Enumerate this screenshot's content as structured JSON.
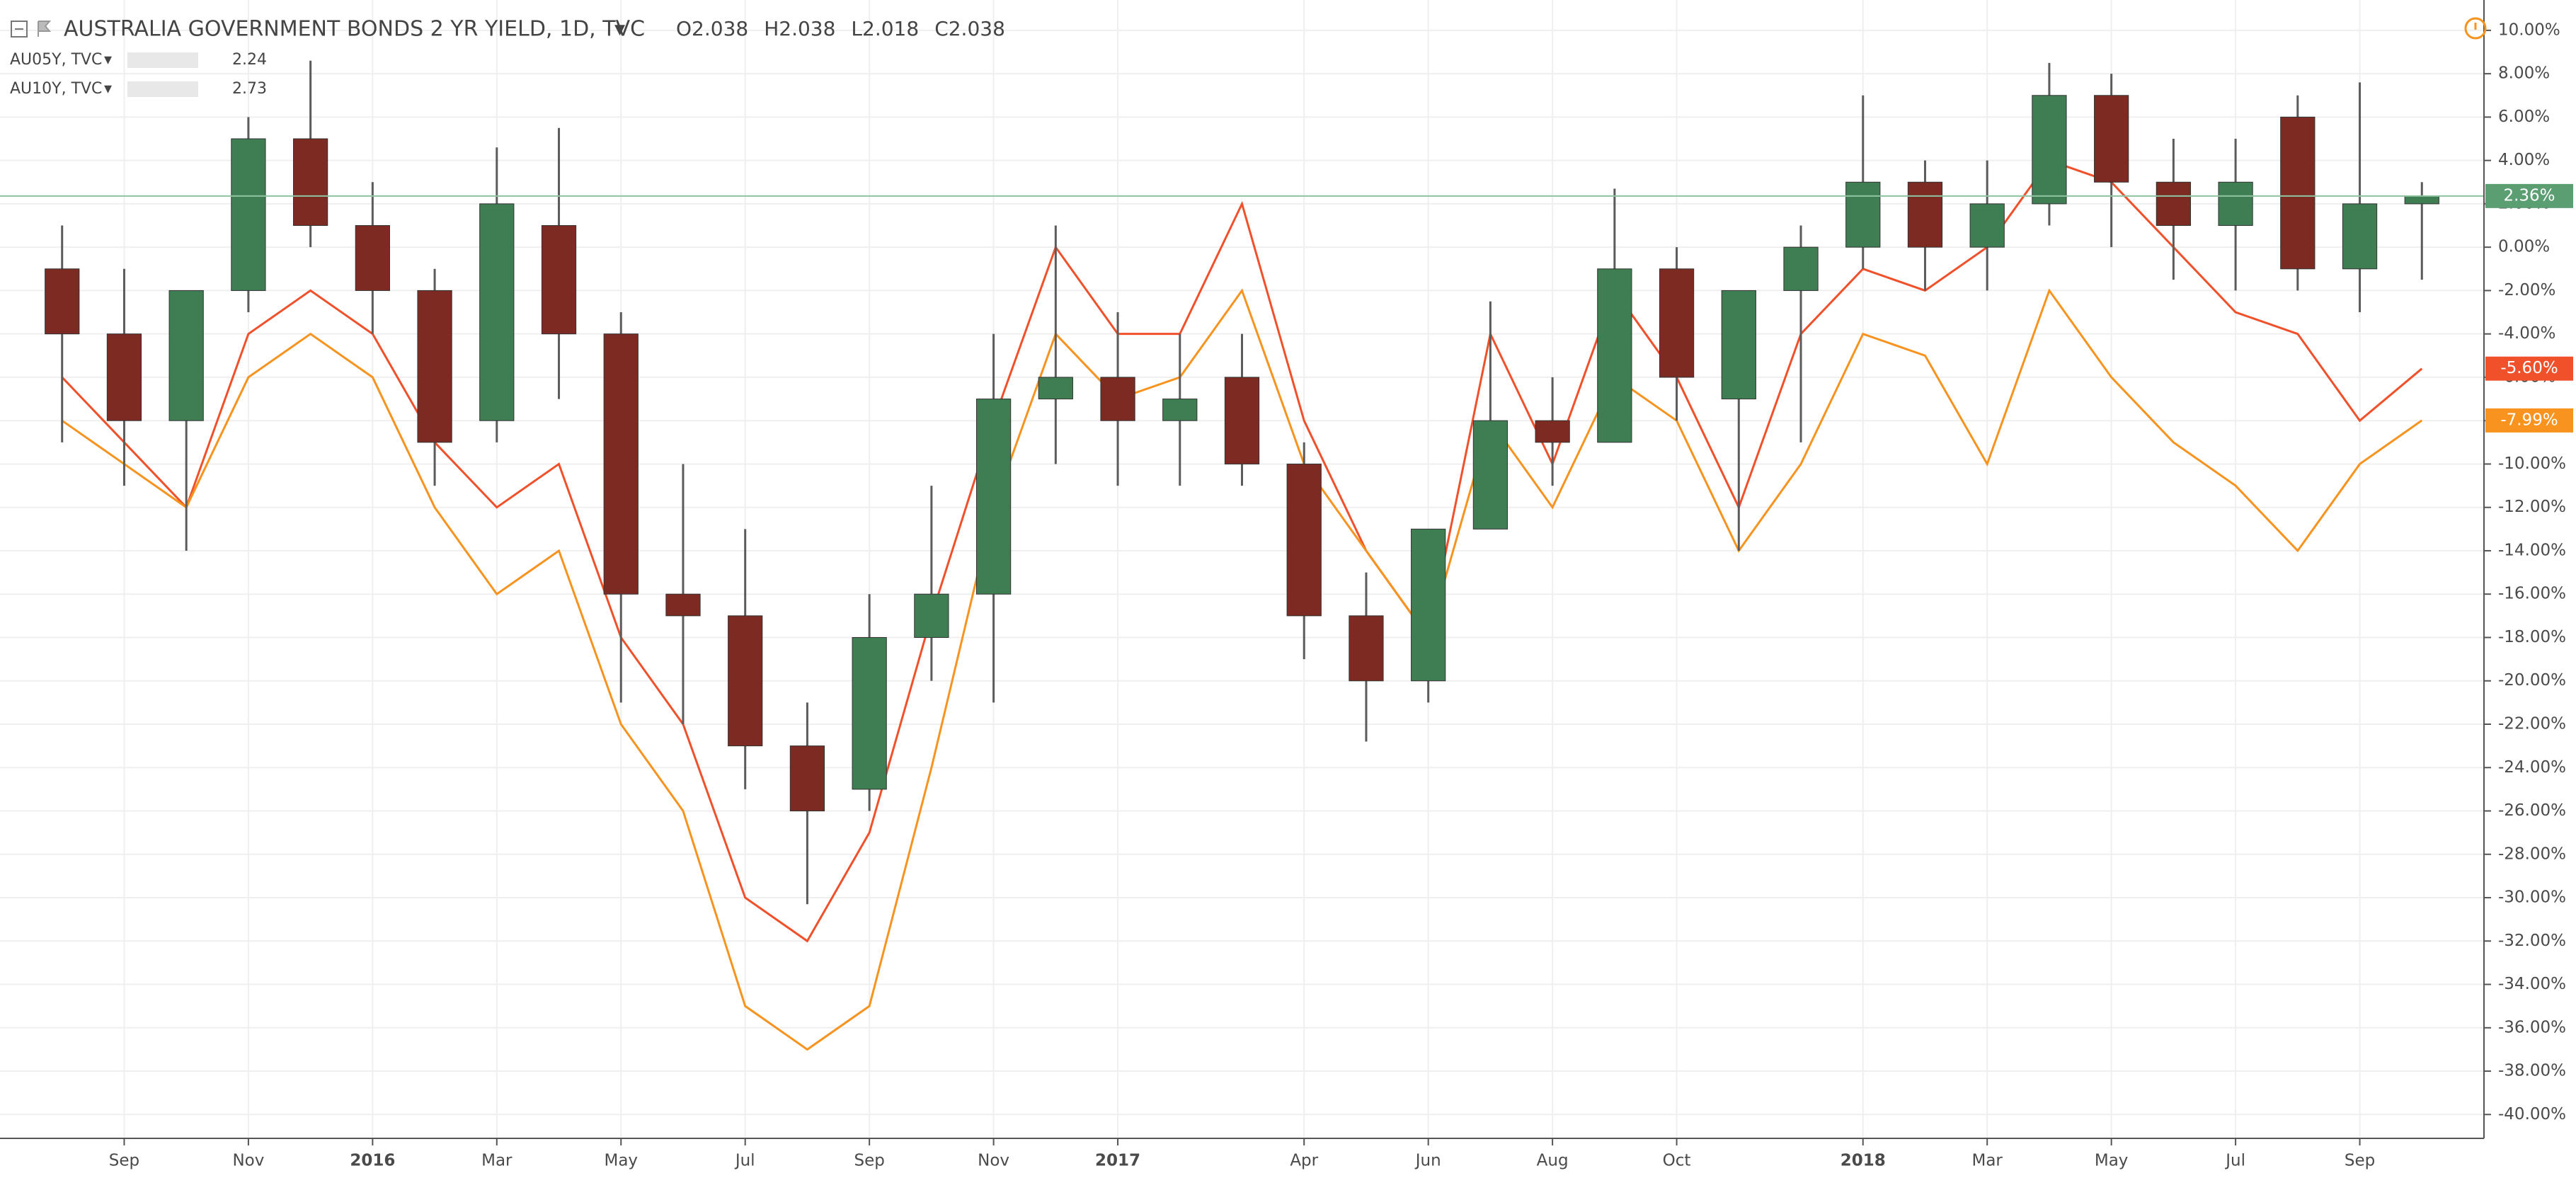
{
  "chart_data": {
    "type": "candlestick",
    "title": "AUSTRALIA GOVERNMENT BONDS 2 YR YIELD, 1D, TVC",
    "ohlc_legend": [
      "O2.038",
      "H2.038",
      "L2.018",
      "C2.038"
    ],
    "x": [
      "2015-08",
      "2015-09",
      "2015-10",
      "2015-11",
      "2015-12",
      "2016-01",
      "2016-02",
      "2016-03",
      "2016-04",
      "2016-05",
      "2016-06",
      "2016-07",
      "2016-08",
      "2016-09",
      "2016-10",
      "2016-11",
      "2016-12",
      "2017-01",
      "2017-02",
      "2017-03",
      "2017-04",
      "2017-05",
      "2017-06",
      "2017-07",
      "2017-08",
      "2017-09",
      "2017-10",
      "2017-11",
      "2017-12",
      "2018-01",
      "2018-02",
      "2018-03",
      "2018-04",
      "2018-05",
      "2018-06",
      "2018-07",
      "2018-08",
      "2018-09",
      "2018-10"
    ],
    "candles": {
      "up_color": "#3f7d52",
      "down_color": "#7d2b22",
      "wick_color": "#5b5b5b",
      "last_label": "2.36%",
      "open": [
        -1,
        -4,
        -8,
        -2,
        5,
        1,
        -2,
        -8,
        1,
        -4,
        -16,
        -17,
        -23,
        -25,
        -18,
        -16,
        -7,
        -6,
        -8,
        -6,
        -10,
        -17,
        -20,
        -13,
        -8,
        -9,
        -1,
        -7,
        -2,
        0,
        3,
        0,
        2,
        7,
        3,
        1,
        6,
        -1,
        2
      ],
      "high": [
        1,
        -1,
        -4,
        6,
        8.6,
        3,
        -1,
        4.6,
        5.5,
        -3,
        -10,
        -13,
        -21,
        -16,
        -11,
        -4,
        1,
        -3,
        -4,
        -4,
        -9,
        -15,
        -13,
        -2.5,
        -6,
        2.7,
        0,
        -4,
        1,
        7,
        4,
        4,
        8.5,
        8,
        5,
        5,
        7,
        7.6,
        3
      ],
      "low": [
        -9,
        -11,
        -14,
        -3,
        0,
        -4,
        -11,
        -9,
        -7,
        -21,
        -22,
        -25,
        -30.3,
        -26,
        -20,
        -21,
        -10,
        -11,
        -11,
        -11,
        -19,
        -22.8,
        -21,
        -13,
        -11,
        -9,
        -8,
        -14,
        -9,
        -1,
        -2,
        -2,
        1,
        0,
        -1.5,
        -2,
        -2,
        -3,
        -1.5
      ],
      "close": [
        -4,
        -8,
        -2,
        5,
        1,
        -2,
        -9,
        2,
        -4,
        -16,
        -17,
        -23,
        -26,
        -18,
        -16,
        -7,
        -6,
        -8,
        -7,
        -10,
        -17,
        -20,
        -13,
        -8,
        -9,
        -1,
        -6,
        -2,
        0,
        3,
        0,
        2,
        7,
        3,
        1,
        3,
        -1,
        2,
        2.36
      ]
    },
    "series": [
      {
        "name": "AU05Y, TVC",
        "value": 2.24,
        "color": "#f0502a",
        "last_label": "-5.60%",
        "values": [
          -6,
          -9,
          -12,
          -4,
          -2,
          -4,
          -9,
          -12,
          -10,
          -18,
          -22,
          -30,
          -32,
          -27,
          -17,
          -8,
          0,
          -4,
          -4,
          2,
          -8,
          -14,
          -18,
          -4,
          -10,
          -2,
          -6,
          -12,
          -4,
          -1,
          -2,
          0,
          4,
          3,
          0,
          -3,
          -4,
          -8,
          -5.6
        ]
      },
      {
        "name": "AU10Y, TVC",
        "value": 2.73,
        "color": "#f7931e",
        "last_label": "-7.99%",
        "values": [
          -8,
          -10,
          -12,
          -6,
          -4,
          -6,
          -12,
          -16,
          -14,
          -22,
          -26,
          -35,
          -37,
          -35,
          -24,
          -12,
          -4,
          -7,
          -6,
          -2,
          -10,
          -14,
          -18,
          -8,
          -12,
          -6,
          -8,
          -14,
          -10,
          -4,
          -5,
          -10,
          -2,
          -6,
          -9,
          -11,
          -14,
          -10,
          -7.99
        ]
      }
    ],
    "xlim": [
      "2015-07",
      "2018-11"
    ],
    "xticks": [
      {
        "value": "2015-09",
        "label": "Sep"
      },
      {
        "value": "2015-11",
        "label": "Nov"
      },
      {
        "value": "2016-01",
        "label": "2016"
      },
      {
        "value": "2016-03",
        "label": "Mar"
      },
      {
        "value": "2016-05",
        "label": "May"
      },
      {
        "value": "2016-07",
        "label": "Jul"
      },
      {
        "value": "2016-09",
        "label": "Sep"
      },
      {
        "value": "2016-11",
        "label": "Nov"
      },
      {
        "value": "2017-01",
        "label": "2017"
      },
      {
        "value": "2017-04",
        "label": "Apr"
      },
      {
        "value": "2017-06",
        "label": "Jun"
      },
      {
        "value": "2017-08",
        "label": "Aug"
      },
      {
        "value": "2017-10",
        "label": "Oct"
      },
      {
        "value": "2018-01",
        "label": "2018"
      },
      {
        "value": "2018-03",
        "label": "Mar"
      },
      {
        "value": "2018-05",
        "label": "May"
      },
      {
        "value": "2018-07",
        "label": "Jul"
      },
      {
        "value": "2018-09",
        "label": "Sep"
      }
    ],
    "ylim": [
      -41.1,
      11.4
    ],
    "yticks": [
      {
        "value": 10,
        "label": "10.00%"
      },
      {
        "value": 8,
        "label": "8.00%"
      },
      {
        "value": 6,
        "label": "6.00%"
      },
      {
        "value": 4,
        "label": "4.00%"
      },
      {
        "value": 2,
        "label": "2.00%"
      },
      {
        "value": 0,
        "label": "0.00%"
      },
      {
        "value": -2,
        "label": "-2.00%"
      },
      {
        "value": -4,
        "label": "-4.00%"
      },
      {
        "value": -6,
        "label": "-6.00%"
      },
      {
        "value": -8,
        "label": "-8.00%"
      },
      {
        "value": -10,
        "label": "-10.00%"
      },
      {
        "value": -12,
        "label": "-12.00%"
      },
      {
        "value": -14,
        "label": "-14.00%"
      },
      {
        "value": -16,
        "label": "-16.00%"
      },
      {
        "value": -18,
        "label": "-18.00%"
      },
      {
        "value": -20,
        "label": "-20.00%"
      },
      {
        "value": -22,
        "label": "-22.00%"
      },
      {
        "value": -24,
        "label": "-24.00%"
      },
      {
        "value": -26,
        "label": "-26.00%"
      },
      {
        "value": -28,
        "label": "-28.00%"
      },
      {
        "value": -30,
        "label": "-30.00%"
      },
      {
        "value": -32,
        "label": "-32.00%"
      },
      {
        "value": -34,
        "label": "-34.00%"
      },
      {
        "value": -36,
        "label": "-36.00%"
      },
      {
        "value": -38,
        "label": "-38.00%"
      },
      {
        "value": -40,
        "label": "-40.00%"
      }
    ],
    "grid": true
  }
}
